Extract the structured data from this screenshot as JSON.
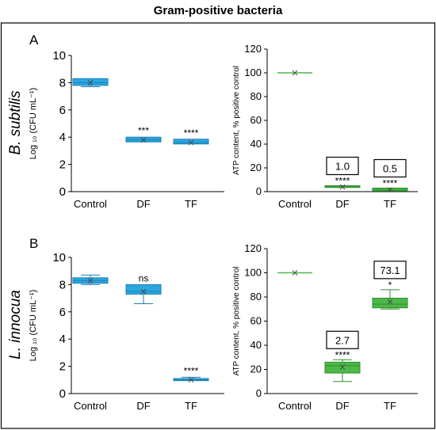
{
  "figure_title": "Gram-positive bacteria",
  "rows": [
    {
      "letter": "A",
      "organism": "B. subtilis"
    },
    {
      "letter": "B",
      "organism": "L. innocua"
    }
  ],
  "colors": {
    "cfu_box": "#29a8e0",
    "cfu_edge": "#1d7fb6",
    "atp_box": "#4cb848",
    "atp_edge": "#2f8f2f",
    "axis": "#000000",
    "frame": "#000000"
  },
  "chart_data": [
    {
      "type": "box",
      "panel": "A",
      "ylabel": "Log ₁₀ (CFU mL⁻¹)",
      "ylim": [
        0,
        10
      ],
      "yticks": [
        0,
        2,
        4,
        6,
        8,
        10
      ],
      "categories": [
        "Control",
        "DF",
        "TF"
      ],
      "boxes": [
        {
          "min": 7.7,
          "q1": 7.8,
          "median": 8.0,
          "mean": 8.0,
          "q3": 8.3,
          "max": 8.3,
          "sig": ""
        },
        {
          "min": 3.65,
          "q1": 3.65,
          "median": 3.8,
          "mean": 3.8,
          "q3": 4.0,
          "max": 4.0,
          "sig": "***"
        },
        {
          "min": 3.5,
          "q1": 3.5,
          "median": 3.6,
          "mean": 3.6,
          "q3": 3.85,
          "max": 3.85,
          "sig": "****"
        }
      ]
    },
    {
      "type": "box",
      "panel": "A",
      "ylabel": "ATP content, % positive control",
      "ylim": [
        0,
        120
      ],
      "yticks": [
        0,
        20,
        40,
        60,
        80,
        100,
        120
      ],
      "categories": [
        "Control",
        "DF",
        "TF"
      ],
      "boxes": [
        {
          "min": 100,
          "q1": 100,
          "median": 100,
          "mean": 100,
          "q3": 100,
          "max": 100,
          "sig": "",
          "label": ""
        },
        {
          "min": 3.5,
          "q1": 3.5,
          "median": 4.0,
          "mean": 4.0,
          "q3": 5.0,
          "max": 5.0,
          "sig": "****",
          "label": "1.0"
        },
        {
          "min": 0.5,
          "q1": 0.5,
          "median": 1.5,
          "mean": 1.5,
          "q3": 3.0,
          "max": 3.0,
          "sig": "****",
          "label": "0.5"
        }
      ]
    },
    {
      "type": "box",
      "panel": "B",
      "ylabel": "Log ₁₀ (CFU mL⁻¹)",
      "ylim": [
        0,
        10
      ],
      "yticks": [
        0,
        2,
        4,
        6,
        8,
        10
      ],
      "categories": [
        "Control",
        "DF",
        "TF"
      ],
      "boxes": [
        {
          "min": 8.0,
          "q1": 8.1,
          "median": 8.3,
          "mean": 8.3,
          "q3": 8.5,
          "max": 8.7,
          "sig": ""
        },
        {
          "min": 6.6,
          "q1": 7.3,
          "median": 7.5,
          "mean": 7.5,
          "q3": 8.0,
          "max": 8.0,
          "sig": "ns"
        },
        {
          "min": 0.95,
          "q1": 0.95,
          "median": 1.0,
          "mean": 1.0,
          "q3": 1.1,
          "max": 1.2,
          "sig": "****"
        }
      ]
    },
    {
      "type": "box",
      "panel": "B",
      "ylabel": "ATP content, % positive control",
      "ylim": [
        0,
        120
      ],
      "yticks": [
        0,
        20,
        40,
        60,
        80,
        100,
        120
      ],
      "categories": [
        "Control",
        "DF",
        "TF"
      ],
      "boxes": [
        {
          "min": 100,
          "q1": 100,
          "median": 100,
          "mean": 100,
          "q3": 100,
          "max": 100,
          "sig": "",
          "label": ""
        },
        {
          "min": 10,
          "q1": 17,
          "median": 23,
          "mean": 22,
          "q3": 26,
          "max": 28,
          "sig": "****",
          "label": "2.7"
        },
        {
          "min": 70,
          "q1": 71,
          "median": 74,
          "mean": 76,
          "q3": 79,
          "max": 86,
          "sig": "*",
          "label": "73.1"
        }
      ]
    }
  ]
}
